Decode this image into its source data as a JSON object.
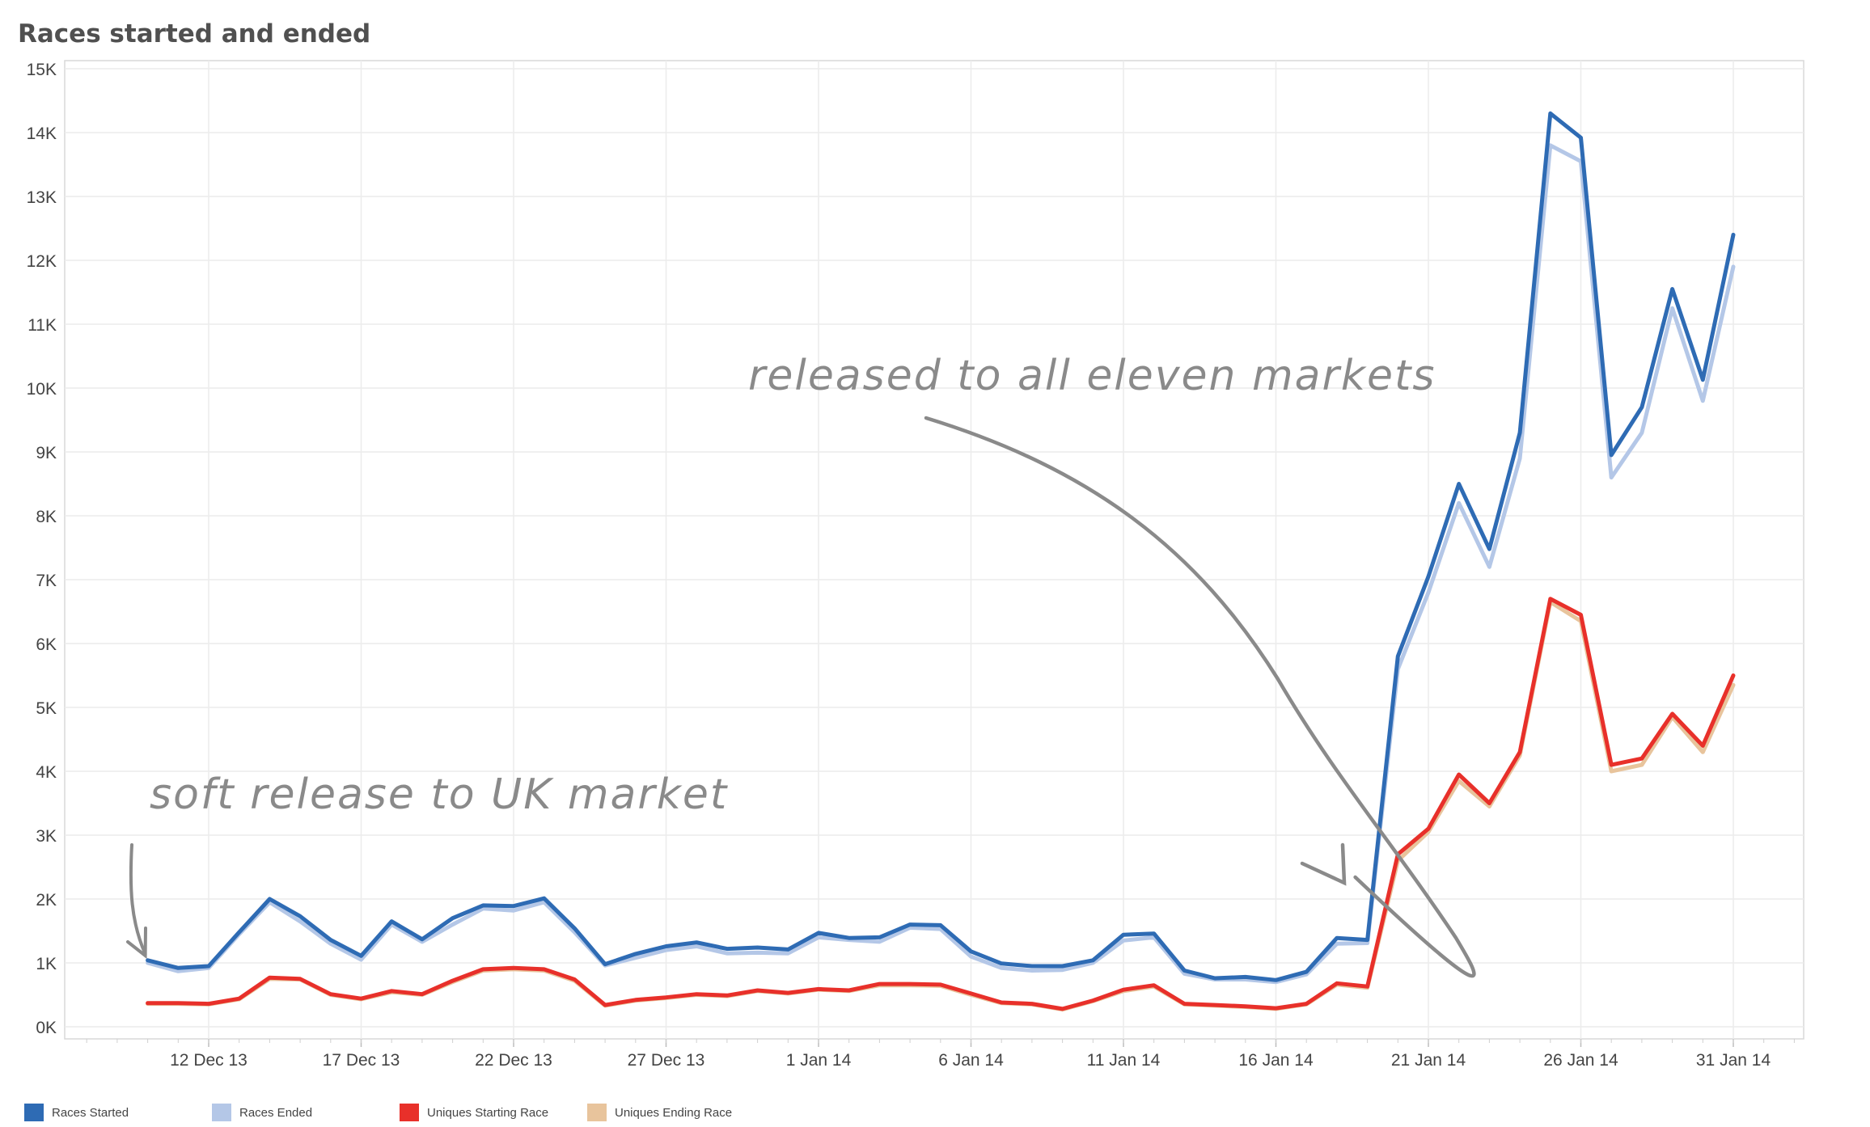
{
  "chart_data": {
    "type": "line",
    "title": "Races started and ended",
    "xlabel": "",
    "ylabel": "",
    "ylim": [
      0,
      15000
    ],
    "y_ticks": [
      {
        "value": 0,
        "label": "0K"
      },
      {
        "value": 1000,
        "label": "1K"
      },
      {
        "value": 2000,
        "label": "2K"
      },
      {
        "value": 3000,
        "label": "3K"
      },
      {
        "value": 4000,
        "label": "4K"
      },
      {
        "value": 5000,
        "label": "5K"
      },
      {
        "value": 6000,
        "label": "6K"
      },
      {
        "value": 7000,
        "label": "7K"
      },
      {
        "value": 8000,
        "label": "8K"
      },
      {
        "value": 9000,
        "label": "9K"
      },
      {
        "value": 10000,
        "label": "10K"
      },
      {
        "value": 11000,
        "label": "11K"
      },
      {
        "value": 12000,
        "label": "12K"
      },
      {
        "value": 13000,
        "label": "13K"
      },
      {
        "value": 14000,
        "label": "14K"
      },
      {
        "value": 15000,
        "label": "15K"
      }
    ],
    "x_ticks": [
      {
        "date": "2013-12-12",
        "label": "12 Dec 13"
      },
      {
        "date": "2013-12-17",
        "label": "17 Dec 13"
      },
      {
        "date": "2013-12-22",
        "label": "22 Dec 13"
      },
      {
        "date": "2013-12-27",
        "label": "27 Dec 13"
      },
      {
        "date": "2014-01-01",
        "label": "1 Jan 14"
      },
      {
        "date": "2014-01-06",
        "label": "6 Jan 14"
      },
      {
        "date": "2014-01-11",
        "label": "11 Jan 14"
      },
      {
        "date": "2014-01-16",
        "label": "16 Jan 14"
      },
      {
        "date": "2014-01-21",
        "label": "21 Jan 14"
      },
      {
        "date": "2014-01-26",
        "label": "26 Jan 14"
      },
      {
        "date": "2014-01-31",
        "label": "31 Jan 14"
      }
    ],
    "x": [
      "2013-12-10",
      "2013-12-11",
      "2013-12-12",
      "2013-12-13",
      "2013-12-14",
      "2013-12-15",
      "2013-12-16",
      "2013-12-17",
      "2013-12-18",
      "2013-12-19",
      "2013-12-20",
      "2013-12-21",
      "2013-12-22",
      "2013-12-23",
      "2013-12-24",
      "2013-12-25",
      "2013-12-26",
      "2013-12-27",
      "2013-12-28",
      "2013-12-29",
      "2013-12-30",
      "2013-12-31",
      "2014-01-01",
      "2014-01-02",
      "2014-01-03",
      "2014-01-04",
      "2014-01-05",
      "2014-01-06",
      "2014-01-07",
      "2014-01-08",
      "2014-01-09",
      "2014-01-10",
      "2014-01-11",
      "2014-01-12",
      "2014-01-13",
      "2014-01-14",
      "2014-01-15",
      "2014-01-16",
      "2014-01-17",
      "2014-01-18",
      "2014-01-19",
      "2014-01-20",
      "2014-01-21",
      "2014-01-22",
      "2014-01-23",
      "2014-01-24",
      "2014-01-25",
      "2014-01-26",
      "2014-01-27",
      "2014-01-28",
      "2014-01-29",
      "2014-01-30",
      "2014-01-31"
    ],
    "series": [
      {
        "name": "Races Ended",
        "color": "#b4c7e7",
        "stroke_width": 5,
        "values": [
          1000,
          870,
          920,
          1450,
          1950,
          1650,
          1300,
          1050,
          1600,
          1330,
          1600,
          1850,
          1820,
          1950,
          1480,
          960,
          1080,
          1200,
          1260,
          1150,
          1160,
          1150,
          1400,
          1360,
          1330,
          1550,
          1530,
          1100,
          920,
          880,
          890,
          1000,
          1350,
          1400,
          830,
          740,
          740,
          700,
          820,
          1300,
          1310,
          5600,
          6800,
          8200,
          7200,
          8900,
          13800,
          13550,
          8600,
          9300,
          11250,
          9800,
          11900
        ]
      },
      {
        "name": "Races Started",
        "color": "#2e6bb4",
        "stroke_width": 5,
        "values": [
          1040,
          920,
          950,
          1480,
          2000,
          1730,
          1360,
          1110,
          1650,
          1370,
          1700,
          1900,
          1890,
          2010,
          1540,
          980,
          1140,
          1260,
          1320,
          1220,
          1240,
          1210,
          1470,
          1390,
          1400,
          1600,
          1590,
          1180,
          990,
          950,
          950,
          1040,
          1440,
          1460,
          880,
          760,
          780,
          730,
          860,
          1390,
          1360,
          5800,
          7050,
          8500,
          7480,
          9300,
          14300,
          13920,
          8950,
          9700,
          11550,
          10130,
          12400
        ]
      },
      {
        "name": "Uniques Ending Race",
        "color": "#e8c49c",
        "stroke_width": 5,
        "values": [
          360,
          360,
          350,
          430,
          750,
          740,
          500,
          430,
          540,
          500,
          700,
          880,
          900,
          880,
          720,
          330,
          410,
          450,
          500,
          480,
          560,
          520,
          580,
          560,
          650,
          650,
          640,
          500,
          370,
          350,
          270,
          400,
          560,
          630,
          350,
          330,
          310,
          280,
          350,
          660,
          610,
          2600,
          3050,
          3850,
          3450,
          4250,
          6650,
          6350,
          4000,
          4100,
          4850,
          4300,
          5350
        ]
      },
      {
        "name": "Uniques Starting Race",
        "color": "#e8302a",
        "stroke_width": 5,
        "values": [
          370,
          370,
          360,
          440,
          770,
          750,
          510,
          440,
          560,
          510,
          720,
          900,
          920,
          900,
          740,
          340,
          420,
          460,
          510,
          490,
          570,
          530,
          590,
          570,
          670,
          670,
          660,
          520,
          380,
          360,
          280,
          410,
          580,
          650,
          360,
          340,
          320,
          290,
          360,
          680,
          630,
          2700,
          3100,
          3950,
          3500,
          4300,
          6700,
          6450,
          4100,
          4200,
          4900,
          4400,
          5500
        ]
      }
    ],
    "legend": {
      "placement": "bottom",
      "entries": [
        {
          "name": "Races Started",
          "color": "#2e6bb4"
        },
        {
          "name": "Races Ended",
          "color": "#b4c7e7"
        },
        {
          "name": "Uniques Starting Race",
          "color": "#e8302a"
        },
        {
          "name": "Uniques Ending Race",
          "color": "#e8c49c"
        }
      ]
    },
    "grid": true,
    "annotations": [
      {
        "text": "soft release to UK market",
        "date": "2013-12-10"
      },
      {
        "text": "released to all eleven markets",
        "date": "2014-01-19"
      }
    ]
  }
}
